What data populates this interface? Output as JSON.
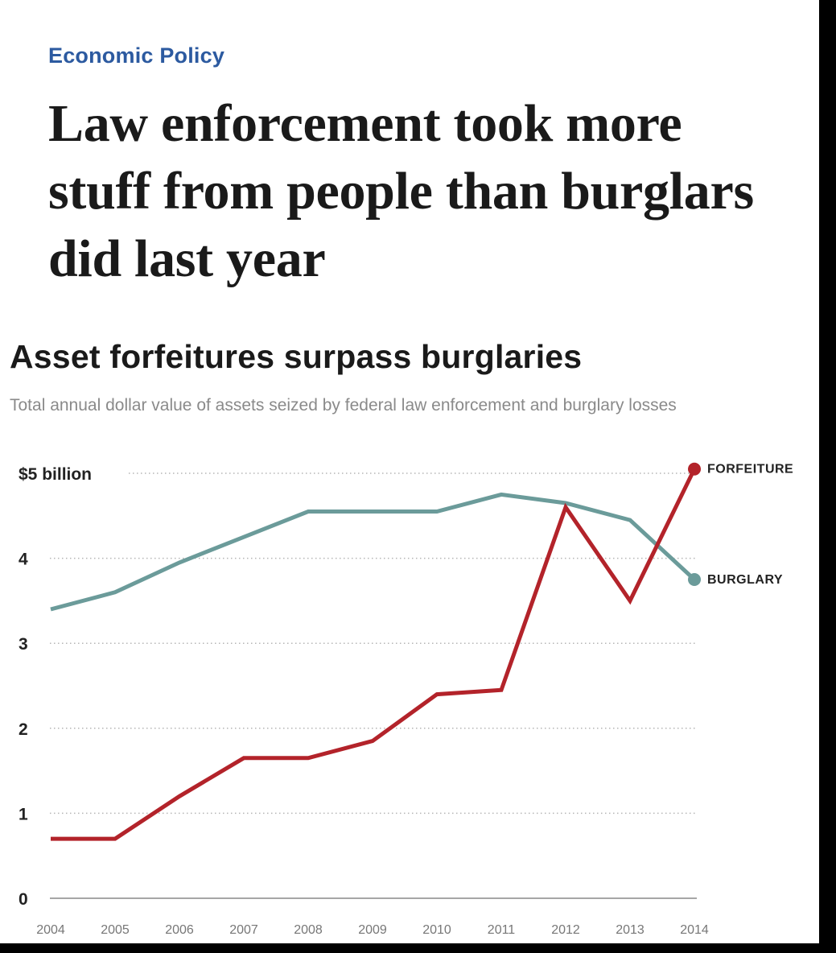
{
  "article": {
    "section": "Economic Policy",
    "headline": "Law enforcement took more stuff from people than burglars did last year"
  },
  "chart_data": {
    "type": "line",
    "title": "Asset forfeitures surpass burglaries",
    "subtitle": "Total annual dollar value of assets seized by federal law enforcement and burglary losses",
    "x": [
      "2004",
      "2005",
      "2006",
      "2007",
      "2008",
      "2009",
      "2010",
      "2011",
      "2012",
      "2013",
      "2014"
    ],
    "ylim": [
      0,
      5
    ],
    "yticks": [
      0,
      1,
      2,
      3,
      4,
      5
    ],
    "ytick_labels": [
      "0",
      "1",
      "2",
      "3",
      "4",
      "$5 billion"
    ],
    "grid": "dotted horizontal",
    "series": [
      {
        "name": "FORFEITURE",
        "color": "#b3232a",
        "values": [
          0.7,
          0.7,
          1.2,
          1.65,
          1.65,
          1.85,
          2.4,
          2.45,
          4.6,
          3.5,
          5.05
        ],
        "end_marker": true
      },
      {
        "name": "BURGLARY",
        "color": "#6b9b9a",
        "values": [
          3.4,
          3.6,
          3.95,
          4.25,
          4.55,
          4.55,
          4.55,
          4.75,
          4.65,
          4.45,
          3.75
        ],
        "end_marker": true
      }
    ]
  }
}
